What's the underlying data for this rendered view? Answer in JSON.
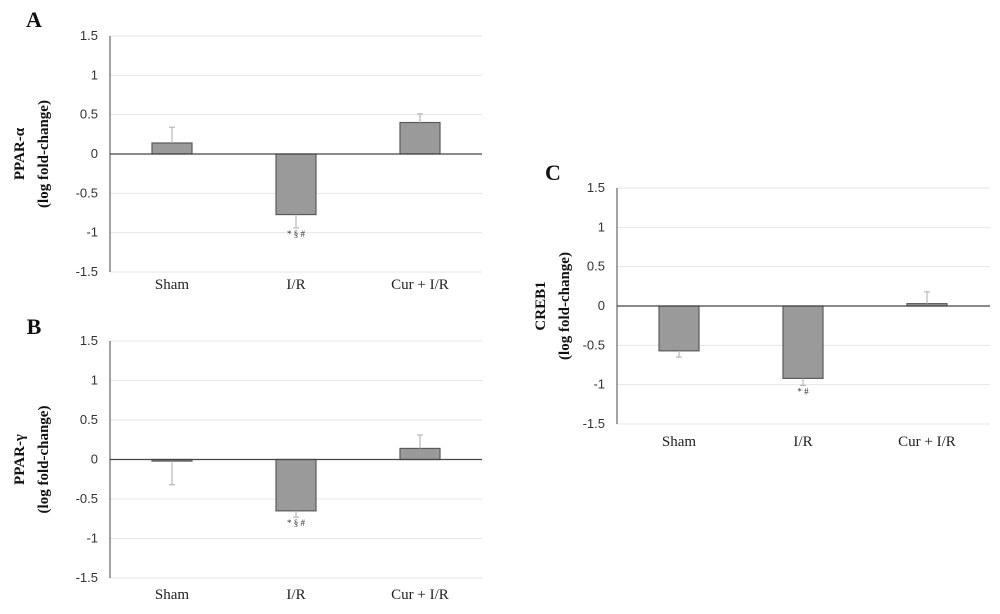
{
  "chart_data": [
    {
      "panel": "A",
      "type": "bar",
      "ylabel_lines": [
        "PPAR-α",
        "(log fold-change)"
      ],
      "yticks": [
        "1.5",
        "1",
        "0.5",
        "0",
        "-0.5",
        "-1",
        "-1.5"
      ],
      "ylim": [
        -1.5,
        1.5
      ],
      "categories": [
        "Sham",
        "I/R",
        "Cur + I/R"
      ],
      "values": [
        0.14,
        -0.77,
        0.4
      ],
      "error": [
        0.2,
        0.17,
        0.11
      ],
      "annotations": [
        "",
        "* § #",
        ""
      ],
      "grid": true
    },
    {
      "panel": "B",
      "type": "bar",
      "ylabel_lines": [
        "PPAR-γ",
        "(log fold-change)"
      ],
      "yticks": [
        "1.5",
        "1",
        "0.5",
        "0",
        "-0.5",
        "-1",
        "-1.5"
      ],
      "ylim": [
        -1.5,
        1.5
      ],
      "categories": [
        "Sham",
        "I/R",
        "Cur + I/R"
      ],
      "values": [
        -0.02,
        -0.65,
        0.14
      ],
      "error": [
        0.3,
        0.08,
        0.17
      ],
      "annotations": [
        "",
        "* § #",
        ""
      ],
      "grid": true
    },
    {
      "panel": "C",
      "type": "bar",
      "ylabel_lines": [
        "CREB1",
        "(log fold-change)"
      ],
      "yticks": [
        "1.5",
        "1",
        "0.5",
        "0",
        "-0.5",
        "-1",
        "-1.5"
      ],
      "ylim": [
        -1.5,
        1.5
      ],
      "categories": [
        "Sham",
        "I/R",
        "Cur + I/R"
      ],
      "values": [
        -0.57,
        -0.92,
        0.03
      ],
      "error": [
        0.08,
        0.09,
        0.15
      ],
      "annotations": [
        "",
        "* #",
        ""
      ],
      "grid": true
    }
  ],
  "style": {
    "bar_fill": "#9a9a9a",
    "bar_stroke": "#5a5a5a",
    "axis_color": "#444444",
    "grid_color": "#e6e6e6",
    "error_color": "#b8b8b8"
  }
}
